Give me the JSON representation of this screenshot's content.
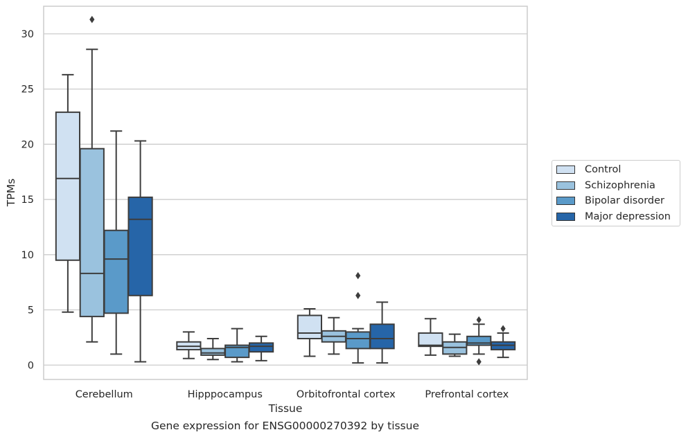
{
  "caption": "Gene expression for ENSG00000270392 by tissue",
  "chart_data": {
    "type": "box",
    "xlabel": "Tissue",
    "ylabel": "TPMs",
    "ylim": [
      -1.3,
      32.5
    ],
    "yticks": [
      0,
      5,
      10,
      15,
      20,
      25,
      30
    ],
    "grid": "horizontal",
    "legend_position": "right",
    "categories": [
      "Cerebellum",
      "Hipppocampus",
      "Orbitofrontal cortex",
      "Prefrontal cortex"
    ],
    "series": [
      {
        "name": "Control",
        "color": "#d0e1f2",
        "boxes": [
          {
            "whisker_low": 4.8,
            "q1": 9.5,
            "median": 16.9,
            "q3": 22.9,
            "whisker_high": 26.3,
            "outliers": []
          },
          {
            "whisker_low": 0.6,
            "q1": 1.4,
            "median": 1.7,
            "q3": 2.1,
            "whisker_high": 3.0,
            "outliers": []
          },
          {
            "whisker_low": 0.8,
            "q1": 2.4,
            "median": 2.9,
            "q3": 4.5,
            "whisker_high": 5.1,
            "outliers": []
          },
          {
            "whisker_low": 0.9,
            "q1": 1.7,
            "median": 1.8,
            "q3": 2.9,
            "whisker_high": 4.2,
            "outliers": []
          }
        ]
      },
      {
        "name": "Schizophrenia",
        "color": "#9ac2de",
        "boxes": [
          {
            "whisker_low": 2.1,
            "q1": 4.4,
            "median": 8.3,
            "q3": 19.6,
            "whisker_high": 28.6,
            "outliers": [
              31.3
            ]
          },
          {
            "whisker_low": 0.5,
            "q1": 0.9,
            "median": 1.1,
            "q3": 1.5,
            "whisker_high": 2.4,
            "outliers": []
          },
          {
            "whisker_low": 1.0,
            "q1": 2.1,
            "median": 2.6,
            "q3": 3.1,
            "whisker_high": 4.3,
            "outliers": []
          },
          {
            "whisker_low": 0.8,
            "q1": 1.0,
            "median": 1.6,
            "q3": 2.1,
            "whisker_high": 2.8,
            "outliers": []
          }
        ]
      },
      {
        "name": "Bipolar disorder",
        "color": "#5a9ac9",
        "boxes": [
          {
            "whisker_low": 1.0,
            "q1": 4.7,
            "median": 9.6,
            "q3": 12.2,
            "whisker_high": 21.2,
            "outliers": []
          },
          {
            "whisker_low": 0.3,
            "q1": 0.7,
            "median": 1.6,
            "q3": 1.8,
            "whisker_high": 3.3,
            "outliers": []
          },
          {
            "whisker_low": 0.2,
            "q1": 1.5,
            "median": 2.4,
            "q3": 3.0,
            "whisker_high": 3.3,
            "outliers": [
              6.3,
              8.1
            ]
          },
          {
            "whisker_low": 1.0,
            "q1": 1.8,
            "median": 2.0,
            "q3": 2.6,
            "whisker_high": 3.7,
            "outliers": [
              0.3,
              4.1
            ]
          }
        ]
      },
      {
        "name": "Major depression",
        "color": "#2665a8",
        "boxes": [
          {
            "whisker_low": 0.3,
            "q1": 6.3,
            "median": 13.2,
            "q3": 15.2,
            "whisker_high": 20.3,
            "outliers": []
          },
          {
            "whisker_low": 0.4,
            "q1": 1.2,
            "median": 1.7,
            "q3": 2.0,
            "whisker_high": 2.6,
            "outliers": []
          },
          {
            "whisker_low": 0.2,
            "q1": 1.5,
            "median": 2.4,
            "q3": 3.7,
            "whisker_high": 5.7,
            "outliers": []
          },
          {
            "whisker_low": 0.7,
            "q1": 1.4,
            "median": 1.8,
            "q3": 2.1,
            "whisker_high": 2.9,
            "outliers": [
              3.3
            ]
          }
        ]
      }
    ]
  }
}
